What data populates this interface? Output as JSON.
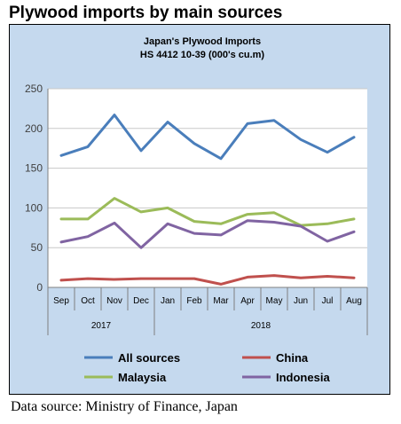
{
  "heading": "Plywood imports by main sources",
  "source": "Data source: Ministry of Finance, Japan",
  "chart_data": {
    "type": "line",
    "title": "Japan's Plywood Imports",
    "subtitle": "HS 4412 10-39  (000's cu.m)",
    "categories": [
      "Sep",
      "Oct",
      "Nov",
      "Dec",
      "Jan",
      "Feb",
      "Mar",
      "Apr",
      "May",
      "Jun",
      "Jul",
      "Aug"
    ],
    "year_groups": [
      {
        "label": "2017",
        "span": 4
      },
      {
        "label": "2018",
        "span": 8
      }
    ],
    "ylim": [
      0,
      250
    ],
    "yticks": [
      0,
      50,
      100,
      150,
      200,
      250
    ],
    "grid": true,
    "legend": "bottom",
    "series": [
      {
        "name": "All sources",
        "color": "#4a7ebb",
        "values": [
          166,
          177,
          217,
          172,
          208,
          181,
          162,
          206,
          210,
          186,
          170,
          189
        ]
      },
      {
        "name": "China",
        "color": "#c0504d",
        "values": [
          9,
          11,
          10,
          11,
          11,
          11,
          4,
          13,
          15,
          12,
          14,
          12
        ]
      },
      {
        "name": "Malaysia",
        "color": "#9bbb59",
        "values": [
          86,
          86,
          112,
          95,
          100,
          83,
          80,
          92,
          94,
          78,
          80,
          86
        ]
      },
      {
        "name": "Indonesia",
        "color": "#8064a2",
        "values": [
          57,
          64,
          81,
          50,
          80,
          68,
          66,
          84,
          82,
          77,
          58,
          70
        ]
      }
    ]
  }
}
